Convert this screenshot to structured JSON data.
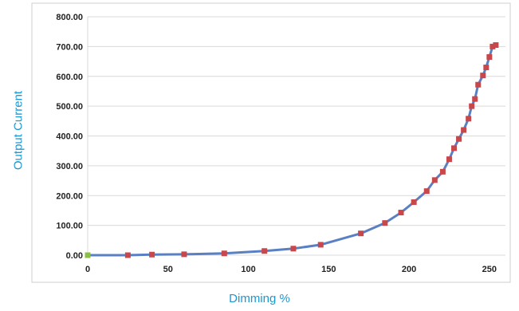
{
  "chart_data": {
    "type": "line",
    "title": "",
    "xlabel": "Dimming %",
    "ylabel": "Output Current",
    "xlim": [
      0,
      260
    ],
    "ylim": [
      0,
      800
    ],
    "x_ticks": [
      "0",
      "50",
      "100",
      "150",
      "200",
      "250"
    ],
    "y_ticks": [
      "0.00",
      "100.00",
      "200.00",
      "300.00",
      "400.00",
      "500.00",
      "600.00",
      "700.00",
      "800.00"
    ],
    "grid": true,
    "legend": "none",
    "series": [
      {
        "x": [
          0,
          25,
          40,
          60,
          85,
          110,
          128,
          145,
          170,
          185,
          195,
          203,
          211,
          216,
          221,
          225,
          228,
          231,
          234,
          237,
          239,
          241,
          243,
          246,
          248,
          250,
          252,
          254
        ],
        "y": [
          0,
          0,
          2,
          3,
          6,
          14,
          22,
          35,
          73,
          108,
          143,
          178,
          215,
          252,
          280,
          322,
          359,
          390,
          420,
          458,
          500,
          524,
          572,
          603,
          630,
          665,
          700,
          705
        ]
      }
    ]
  },
  "colors": {
    "line": "#5a80c4",
    "marker": "#c8474b",
    "first_marker": "#8cbf45",
    "axis_title": "#1a98d4",
    "grid": "#d9d9d9",
    "frame": "#cfcfcf",
    "tick_text": "#222222"
  }
}
